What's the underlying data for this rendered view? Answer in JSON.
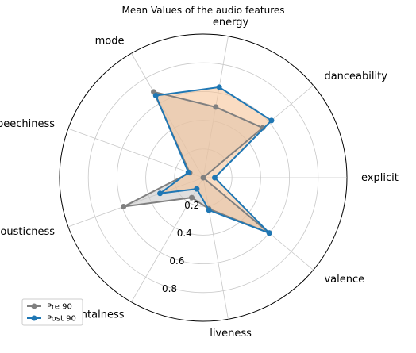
{
  "chart_data": {
    "type": "radar",
    "title": "Mean Values of the audio features",
    "axes": [
      "explicit",
      "danceability",
      "energy",
      "mode",
      "speechiness",
      "acousticness",
      "instrumentalness",
      "liveness",
      "valence"
    ],
    "radial_ticks": [
      "0.2",
      "0.4",
      "0.6",
      "0.8"
    ],
    "rlim": [
      0,
      1
    ],
    "grid": true,
    "legend_position": "bottom-left",
    "series": [
      {
        "name": "Pre 90",
        "color": "#808080",
        "fill": "#c9c9c9",
        "values": [
          0.0,
          0.54,
          0.5,
          0.69,
          0.1,
          0.59,
          0.16,
          0.22,
          0.6
        ]
      },
      {
        "name": "Post 90",
        "color": "#1f77b4",
        "fill": "#f5c08f",
        "values": [
          0.08,
          0.62,
          0.64,
          0.66,
          0.11,
          0.32,
          0.09,
          0.23,
          0.6
        ]
      }
    ]
  }
}
